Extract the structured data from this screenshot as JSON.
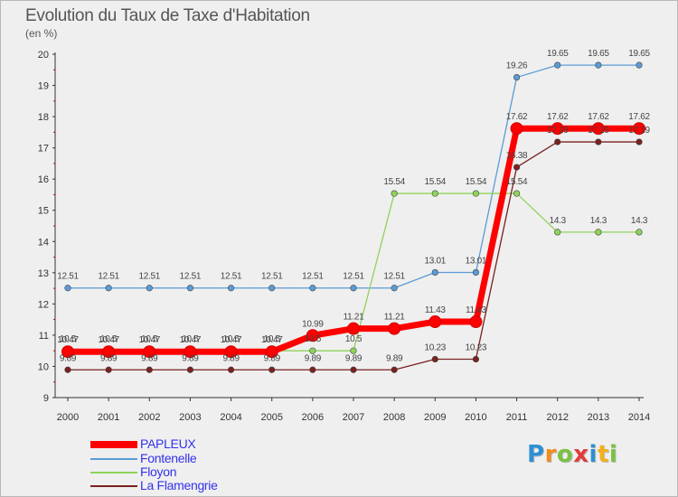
{
  "title": "Evolution du Taux de Taxe d'Habitation",
  "subtitle": "(en %)",
  "logo": {
    "letters": [
      "P",
      "r",
      "o",
      "x",
      "i",
      "t",
      "i"
    ],
    "colors": [
      "#2f8fd3",
      "#f28c1e",
      "#7cc142",
      "#e23b3b",
      "#2f8fd3",
      "#f2b01e",
      "#7cc142"
    ]
  },
  "chart_data": {
    "type": "line",
    "x": [
      "2000",
      "2001",
      "2002",
      "2003",
      "2004",
      "2005",
      "2006",
      "2007",
      "2008",
      "2009",
      "2010",
      "2011",
      "2012",
      "2013",
      "2014"
    ],
    "ylim": [
      9,
      20
    ],
    "yticks": [
      "9",
      "10",
      "11",
      "12",
      "13",
      "14",
      "15",
      "16",
      "17",
      "18",
      "19",
      "20"
    ],
    "grid": false,
    "legend_position": "bottom-left",
    "series": [
      {
        "name": "Fontenelle",
        "color": "#5b9bd5",
        "values": [
          12.51,
          12.51,
          12.51,
          12.51,
          12.51,
          12.51,
          12.51,
          12.51,
          12.51,
          13.01,
          13.01,
          19.26,
          19.65,
          19.65,
          19.65
        ],
        "labels": [
          "12.51",
          "12.51",
          "12.51",
          "12.51",
          "12.51",
          "12.51",
          "12.51",
          "12.51",
          "12.51",
          "13.01",
          "13.01",
          "19.26",
          "19.65",
          "19.65",
          "19.65"
        ]
      },
      {
        "name": "Floyon",
        "color": "#8fd35a",
        "values": [
          10.5,
          10.5,
          10.5,
          10.5,
          10.5,
          10.5,
          10.5,
          10.5,
          15.54,
          15.54,
          15.54,
          15.54,
          14.3,
          14.3,
          14.3
        ],
        "labels": [
          "10.5",
          "10.5",
          "10.5",
          "10.5",
          "10.5",
          "10.5",
          "10.5",
          "10.5",
          "15.54",
          "15.54",
          "15.54",
          "15.54",
          "14.3",
          "14.3",
          "14.3"
        ]
      },
      {
        "name": "La Flamengrie",
        "color": "#7a2121",
        "values": [
          9.89,
          9.89,
          9.89,
          9.89,
          9.89,
          9.89,
          9.89,
          9.89,
          9.89,
          10.23,
          10.23,
          16.38,
          17.19,
          17.19,
          17.19
        ],
        "labels": [
          "9.89",
          "9.89",
          "9.89",
          "9.89",
          "9.89",
          "9.89",
          "9.89",
          "9.89",
          "9.89",
          "10.23",
          "10.23",
          "16.38",
          "17.19",
          "17.19",
          "17.19"
        ]
      },
      {
        "name": "PAPLEUX",
        "color": "#ff0000",
        "values": [
          10.47,
          10.47,
          10.47,
          10.47,
          10.47,
          10.47,
          10.99,
          11.21,
          11.21,
          11.43,
          11.43,
          17.62,
          17.62,
          17.62,
          17.62
        ],
        "labels": [
          "10.47",
          "10.47",
          "10.47",
          "10.47",
          "10.47",
          "10.47",
          "10.99",
          "11.21",
          "11.21",
          "11.43",
          "11.43",
          "17.62",
          "17.62",
          "17.62",
          "17.62"
        ]
      }
    ],
    "legend": [
      {
        "name": "PAPLEUX",
        "color": "#ff0000",
        "text_color": "#3333ee"
      },
      {
        "name": "Fontenelle",
        "color": "#5b9bd5",
        "text_color": "#3333ee"
      },
      {
        "name": "Floyon",
        "color": "#8fd35a",
        "text_color": "#3333ee"
      },
      {
        "name": "La Flamengrie",
        "color": "#7a2121",
        "text_color": "#3333ee"
      }
    ]
  }
}
